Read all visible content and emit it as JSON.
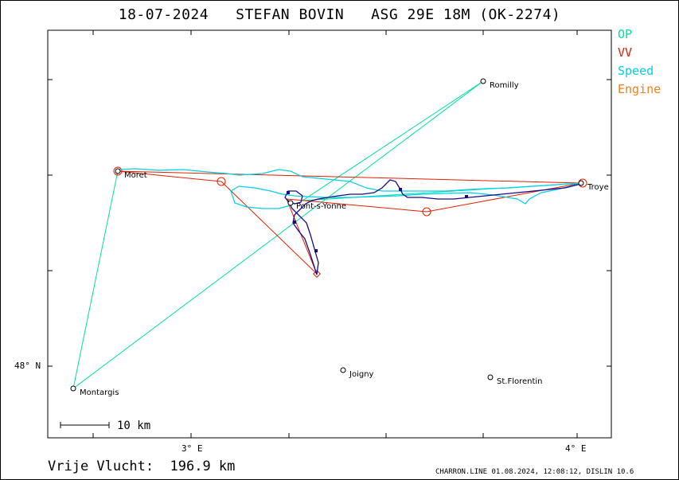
{
  "title": "18-07-2024   STEFAN BOVIN   ASG 29E 18M (OK-2274)",
  "legend": [
    {
      "label": "OP",
      "color": "#00e0a0"
    },
    {
      "label": "VV",
      "color": "#e02000"
    },
    {
      "label": "Speed",
      "color": "#00d0e8"
    },
    {
      "label": "Engine",
      "color": "#f08020"
    }
  ],
  "places": [
    {
      "name": "Romilly"
    },
    {
      "name": "Moret"
    },
    {
      "name": "Troye"
    },
    {
      "name": "Pont-s-Yonne"
    },
    {
      "name": "Joigny"
    },
    {
      "name": "St.Florentin"
    },
    {
      "name": "Montargis"
    }
  ],
  "axis": {
    "x_labels": [
      "3° E",
      "4° E"
    ],
    "y_labels": [
      "48° N"
    ]
  },
  "scale_bar": "10 km",
  "distance_text": "Vrije Vlucht:  196.9 km",
  "footer": "CHARRON.LINE 01.08.2024, 12:08:12, DISLIN 10.6",
  "colors": {
    "track": "#1a0a8a",
    "op": "#00e0a0",
    "vv": "#e02000",
    "speed": "#00d0e8"
  }
}
